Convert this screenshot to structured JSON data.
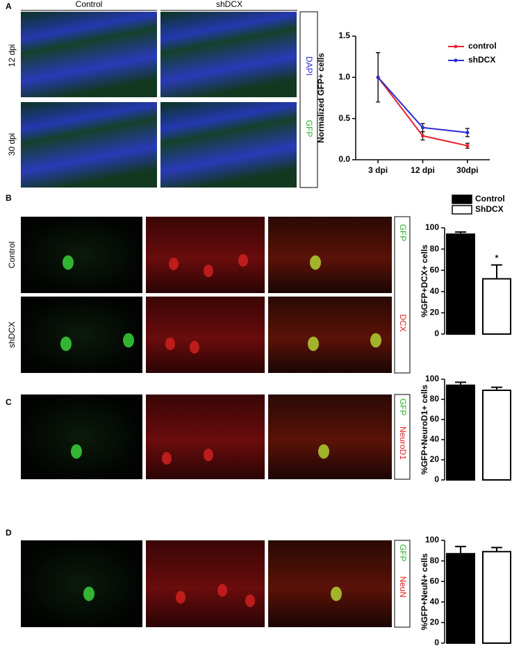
{
  "panel_labels": [
    "A",
    "B",
    "C",
    "D"
  ],
  "panel_a": {
    "columns": [
      "Control",
      "shDCX"
    ],
    "rows": [
      "12 dpi",
      "30 dpi"
    ],
    "stains": [
      "DAPI",
      "GFP"
    ]
  },
  "panel_b": {
    "rows": [
      "Control",
      "shDCX"
    ],
    "stains": [
      "GFP",
      "DCX"
    ]
  },
  "panel_c": {
    "stains": [
      "GFP",
      "NeuroD1"
    ]
  },
  "panel_d": {
    "stains": [
      "GFP",
      "NeuN"
    ]
  },
  "chart_data": [
    {
      "type": "line",
      "y_label": "Normalized GFP+ cells",
      "categories": [
        "3 dpi",
        "12 dpi",
        "30dpi"
      ],
      "ylim": [
        0,
        1.5
      ],
      "yticks": [
        {
          "value": 0,
          "label": "0.0"
        },
        0.5,
        {
          "value": 1,
          "label": "1.0"
        },
        1.5
      ],
      "series": [
        {
          "name": "control",
          "color": "#e8202a",
          "values": [
            1.0,
            0.29,
            0.17
          ],
          "errors": [
            0.3,
            0.05,
            0.03
          ]
        },
        {
          "name": "shDCX",
          "color": "#2a2ad0",
          "values": [
            1.0,
            0.39,
            0.33
          ],
          "errors": [
            0.3,
            0.05,
            0.05
          ]
        }
      ]
    },
    {
      "type": "bar",
      "y_label": "%GFP+DCX+ cells",
      "ylim": [
        0,
        100
      ],
      "yticks": [
        0,
        20,
        40,
        60,
        80,
        100
      ],
      "series": [
        {
          "name": "Control",
          "color": "#000000",
          "values": [
            94
          ],
          "errors": [
            2
          ]
        },
        {
          "name": "ShDCX",
          "color": "#ffffff",
          "values": [
            52
          ],
          "errors": [
            13
          ]
        }
      ],
      "annotation": "*"
    },
    {
      "type": "bar",
      "y_label": "%GFP+NeuroD1+ cells",
      "ylim": [
        0,
        100
      ],
      "yticks": [
        0,
        20,
        40,
        60,
        80,
        100
      ],
      "values": [
        94,
        89
      ],
      "errors": [
        3,
        3
      ],
      "colors": [
        "#000000",
        "#ffffff"
      ]
    },
    {
      "type": "bar",
      "y_label": "%GFP+NeuN+ cells",
      "ylim": [
        0,
        100
      ],
      "yticks": [
        0,
        20,
        40,
        60,
        80,
        100
      ],
      "values": [
        87,
        89
      ],
      "errors": [
        7,
        4
      ],
      "colors": [
        "#000000",
        "#ffffff"
      ]
    }
  ]
}
